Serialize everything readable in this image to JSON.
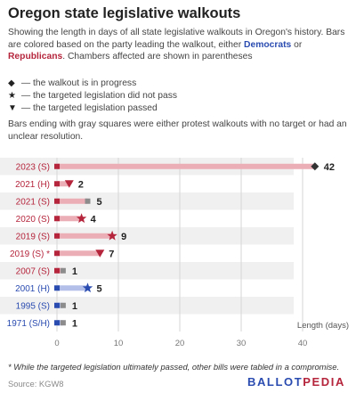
{
  "title": "Oregon state legislative walkouts",
  "subtitle": {
    "part1": "Showing the length in days of all state legislative walkouts in Oregon's history. Bars are colored based on the party leading the walkout, either ",
    "democrats": "Democrats",
    "part2": " or ",
    "republicans": "Republicans",
    "part3": ". Chambers affected are shown in parentheses"
  },
  "key": [
    {
      "icon": "diamond-icon",
      "glyph": "◆",
      "text": "— the walkout is in progress"
    },
    {
      "icon": "star-icon",
      "glyph": "★",
      "text": "— the targeted legislation did not pass"
    },
    {
      "icon": "triangle-down-icon",
      "glyph": "▼",
      "text": "— the targeted legislation passed"
    }
  ],
  "note": "Bars ending with gray squares were either protest walkouts with no target or had an unclear resolution.",
  "footnote": "* While the targeted legislation ultimately passed, other bills were tabled in a compromise.",
  "source": "Source: KGW8",
  "brand": {
    "left": "BALLOT",
    "right": "PEDIA"
  },
  "colors": {
    "republican": "#b5253c",
    "republican_bar": "#ecaeb6",
    "democrat": "#2a4bb0",
    "democrat_bar": "#b3bfe8",
    "gray_marker": "#8c8c8c",
    "row_band": "#f0f0f0"
  },
  "chart_data": {
    "type": "bar",
    "orientation": "horizontal",
    "xlabel": "Length (days)",
    "xlim": [
      0,
      45
    ],
    "xticks": [
      0,
      10,
      20,
      30,
      40
    ],
    "grid": true,
    "categories": [
      "2023 (S)",
      "2021 (H)",
      "2021 (S)",
      "2020 (S)",
      "2019 (S)",
      "2019 (S) *",
      "2007 (S)",
      "2001 (H)",
      "1995 (S)",
      "1971 (S/H)"
    ],
    "values": [
      42,
      2,
      5,
      4,
      9,
      7,
      1,
      5,
      1,
      1
    ],
    "party": [
      "Republican",
      "Republican",
      "Republican",
      "Republican",
      "Republican",
      "Republican",
      "Republican",
      "Democrat",
      "Democrat",
      "Democrat"
    ],
    "outcome": [
      "in progress",
      "passed",
      "unclear",
      "did not pass",
      "did not pass",
      "passed",
      "unclear",
      "did not pass",
      "unclear",
      "unclear"
    ],
    "marker": [
      "diamond",
      "triangle",
      "square",
      "star",
      "star",
      "triangle",
      "square",
      "star",
      "square",
      "square"
    ]
  }
}
